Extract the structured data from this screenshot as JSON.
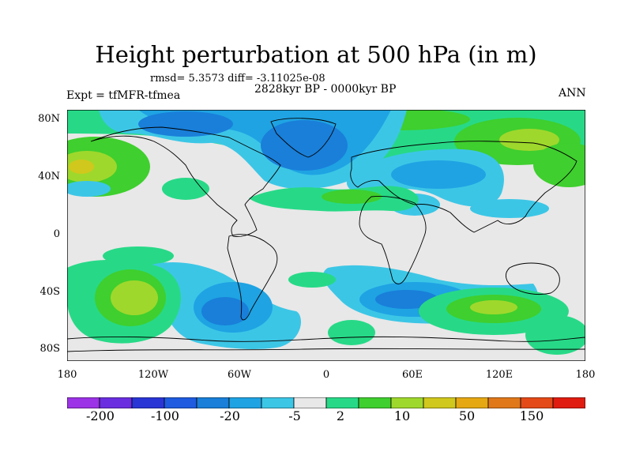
{
  "title": "Height perturbation at 500 hPa (in m)",
  "stats": "rmsd= 5.3573 diff= -3.11025e-08",
  "period": "2828kyr BP - 0000kyr BP",
  "experiment": "Expt = tfMFR-tfmea",
  "season": "ANN",
  "map": {
    "lat_labels": [
      "80N",
      "40N",
      "0",
      "40S",
      "80S"
    ],
    "lon_labels": [
      "180",
      "120W",
      "60W",
      "0",
      "60E",
      "120E",
      "180"
    ]
  },
  "colorbar": {
    "colors": [
      "#9c33e6",
      "#6a2ee0",
      "#2a35d6",
      "#1e5be0",
      "#197fd9",
      "#1fa3e3",
      "#3cc6e6",
      "#e8e8e8",
      "#27d987",
      "#3fcf2e",
      "#9fd82c",
      "#d0c81c",
      "#e6a812",
      "#e0781a",
      "#e44a17",
      "#e01c10"
    ],
    "labels": [
      "-200",
      "-100",
      "-20",
      "-5",
      "2",
      "10",
      "50",
      "150"
    ]
  }
}
